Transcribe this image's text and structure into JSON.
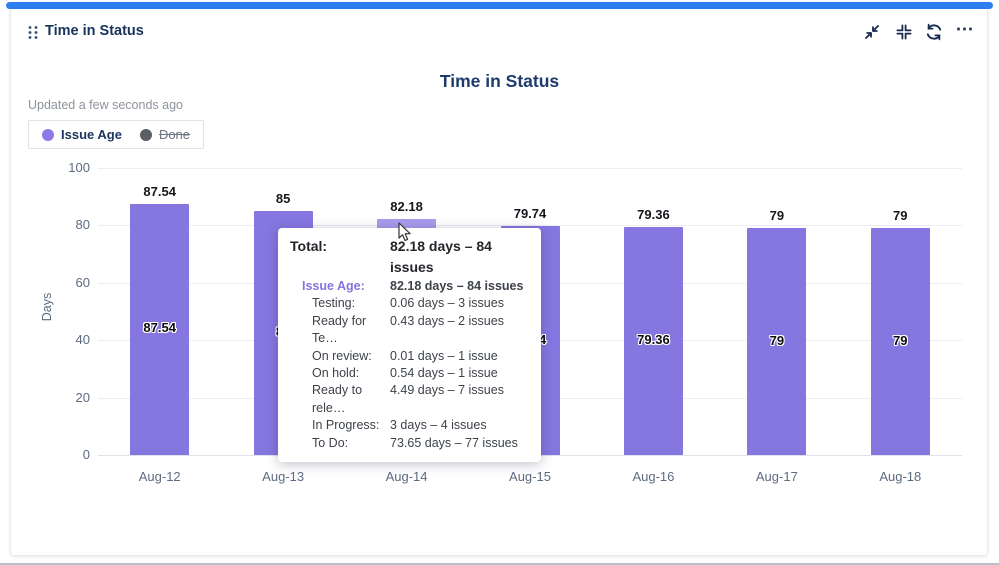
{
  "widget": {
    "title": "Time in Status",
    "accent_color": "#2e7ef0",
    "actions": {
      "minimize": "Minimize",
      "contract": "Exit full screen",
      "refresh": "Refresh",
      "more": "⋯"
    }
  },
  "chart": {
    "title": "Time in Status",
    "updated": "Updated a few seconds ago",
    "legend": [
      {
        "label": "Issue Age",
        "color": "#8c7ae6",
        "active": true
      },
      {
        "label": "Done",
        "color": "#5a5f66",
        "active": false
      }
    ]
  },
  "chart_data": {
    "type": "bar",
    "title": "Time in Status",
    "series_name": "Issue Age",
    "categories": [
      "Aug-12",
      "Aug-13",
      "Aug-14",
      "Aug-15",
      "Aug-16",
      "Aug-17",
      "Aug-18"
    ],
    "values": [
      87.54,
      85,
      82.18,
      79.74,
      79.36,
      79,
      79
    ],
    "bar_labels": [
      "87.54",
      "85",
      "82.18",
      "79.74",
      "79.36",
      "79",
      "79"
    ],
    "xlabel": "",
    "ylabel": "Days",
    "ylim": [
      0,
      100
    ],
    "yticks": [
      0,
      20,
      40,
      60,
      80,
      100
    ],
    "grid": true,
    "legend_position": "top-left",
    "bar_color": "#8576e0",
    "hover_color": "#a89bec",
    "hover_index": 2
  },
  "tooltip": {
    "rows": [
      {
        "label": "Total:",
        "value": "82.18 days – 84 issues",
        "style": "total"
      },
      {
        "label": "Issue Age:",
        "value": "82.18 days – 84 issues",
        "style": "series"
      },
      {
        "label": "Testing:",
        "value": "0.06 days – 3 issues",
        "style": "status"
      },
      {
        "label": "Ready for Te…",
        "value": "0.43 days – 2 issues",
        "style": "status"
      },
      {
        "label": "On review:",
        "value": "0.01 days – 1 issue",
        "style": "status"
      },
      {
        "label": "On hold:",
        "value": "0.54 days – 1 issue",
        "style": "status"
      },
      {
        "label": "Ready to rele…",
        "value": "4.49 days – 7 issues",
        "style": "status"
      },
      {
        "label": "In Progress:",
        "value": "3 days – 4 issues",
        "style": "status"
      },
      {
        "label": "To Do:",
        "value": "73.65 days – 77 issues",
        "style": "status"
      }
    ]
  }
}
